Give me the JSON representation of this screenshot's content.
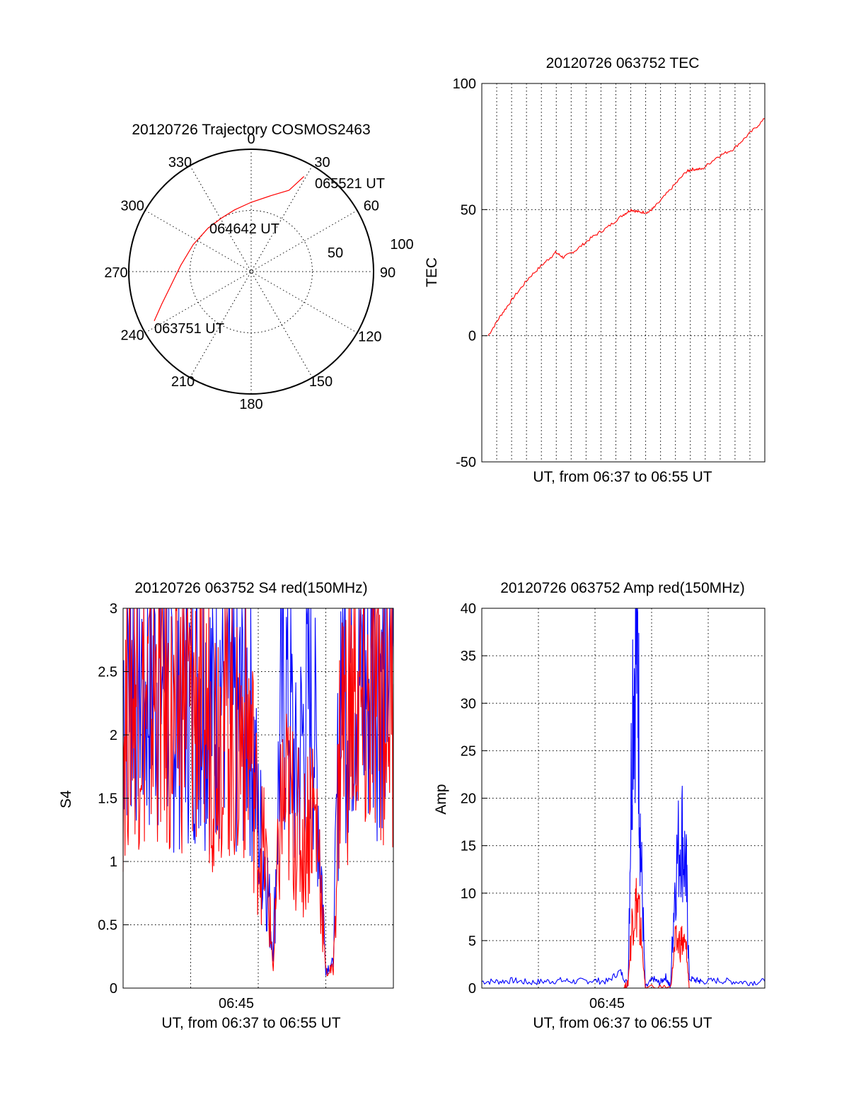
{
  "colors": {
    "red_series": "#ff0000",
    "blue_series": "#0000ff",
    "axes": "#000000"
  },
  "chart_data": [
    {
      "type": "polar",
      "title": "20120726 Trajectory COSMOS2463",
      "angle_ticks": [
        "0",
        "30",
        "60",
        "90",
        "120",
        "150",
        "180",
        "210",
        "240",
        "270",
        "300",
        "330"
      ],
      "radius_labels": [
        "50",
        "100"
      ],
      "annotations": [
        {
          "text": "063751 UT",
          "azimuth": 243,
          "elevation": 10
        },
        {
          "text": "064642 UT",
          "azimuth": 331,
          "elevation": 45
        },
        {
          "text": "065521 UT",
          "azimuth": 29,
          "elevation": 10
        }
      ],
      "series": [
        {
          "color": "#ff0000",
          "points": [
            [
              243,
              10
            ],
            [
              250,
              20
            ],
            [
              260,
              30
            ],
            [
              275,
              38
            ],
            [
              295,
              43
            ],
            [
              315,
              45
            ],
            [
              331,
              45
            ],
            [
              345,
              43
            ],
            [
              360,
              39
            ],
            [
              375,
              32
            ],
            [
              385,
              24
            ],
            [
              389,
              10
            ]
          ]
        }
      ]
    },
    {
      "type": "line",
      "title": "20120726 063752 TEC",
      "xlabel": "UT, from 06:37 to 06:55 UT",
      "ylabel": "TEC",
      "ylim": [
        -50,
        100
      ],
      "yticks": [
        "-50",
        "0",
        "50",
        "100"
      ],
      "xlim_minutes": [
        0,
        18
      ],
      "grid": true,
      "series": [
        {
          "color": "#ff0000",
          "x": [
            0.4,
            1.2,
            2.0,
            3.0,
            4.0,
            4.7,
            5.2,
            6.0,
            7.0,
            8.0,
            9.0,
            9.5,
            10.0,
            10.6,
            11.0,
            12.0,
            13.0,
            13.4,
            14.0,
            15.0,
            16.0,
            17.0,
            18.0
          ],
          "y": [
            0,
            8,
            15,
            23,
            29,
            33,
            31,
            34,
            39,
            43,
            48,
            50,
            49,
            49,
            51,
            58,
            65,
            66,
            66,
            71,
            74,
            80,
            86
          ]
        }
      ]
    },
    {
      "type": "line",
      "title": "20120726 063752 S4 red(150MHz)",
      "xlabel": "UT, from 06:37 to 06:55 UT",
      "ylabel": "S4",
      "ylim": [
        0,
        3
      ],
      "yticks": [
        "0",
        "0.5",
        "1",
        "1.5",
        "2",
        "2.5",
        "3"
      ],
      "xtick_labels": [
        "06:45"
      ],
      "xlim_minutes": [
        0,
        18
      ],
      "grid": true,
      "series": [
        {
          "color": "#0000ff",
          "x": [
            0.0,
            0.5,
            1.0,
            1.5,
            2.0,
            2.5,
            3.0,
            3.5,
            4.0,
            4.5,
            5.0,
            5.5,
            6.0,
            6.5,
            7.0,
            7.5,
            8.0,
            8.5,
            9.0,
            9.5,
            10.0,
            10.5,
            11.0,
            11.5,
            12.0,
            12.5,
            13.0,
            13.5,
            14.0,
            14.5,
            15.0,
            15.5,
            16.0,
            16.5,
            17.0,
            17.5,
            18.0
          ],
          "y": [
            2.4,
            2.7,
            2.6,
            2.3,
            2.5,
            2.6,
            2.4,
            2.2,
            2.6,
            2.3,
            2.5,
            2.4,
            2.2,
            2.5,
            2.4,
            2.0,
            2.3,
            2.2,
            1.3,
            1.0,
            0.25,
            2.2,
            2.4,
            1.6,
            2.0,
            2.5,
            1.5,
            0.15,
            0.2,
            2.6,
            2.4,
            2.7,
            2.3,
            2.5,
            2.6,
            2.8,
            2.7
          ]
        },
        {
          "color": "#ff0000",
          "x": [
            0.0,
            0.5,
            1.0,
            1.5,
            2.0,
            2.5,
            3.0,
            3.5,
            4.0,
            4.5,
            5.0,
            5.5,
            6.0,
            6.5,
            7.0,
            7.5,
            8.0,
            8.5,
            9.0,
            9.5,
            10.0,
            10.5,
            11.0,
            11.5,
            12.0,
            12.5,
            13.0,
            13.5,
            14.0,
            14.5,
            15.0,
            15.5,
            16.0,
            16.5,
            17.0,
            17.5,
            18.0
          ],
          "y": [
            2.0,
            2.5,
            2.4,
            2.2,
            2.3,
            2.5,
            2.1,
            2.0,
            2.4,
            2.2,
            2.3,
            2.2,
            2.0,
            2.3,
            2.2,
            1.8,
            2.1,
            2.0,
            1.2,
            1.0,
            0.15,
            1.4,
            1.5,
            1.3,
            1.1,
            1.5,
            1.2,
            0.12,
            0.15,
            2.2,
            2.1,
            2.3,
            2.0,
            2.2,
            2.3,
            2.4,
            2.4
          ]
        }
      ]
    },
    {
      "type": "line",
      "title": "20120726 063752 Amp red(150MHz)",
      "xlabel": "UT, from 06:37 to 06:55 UT",
      "ylabel": "Amp",
      "ylim": [
        0,
        40
      ],
      "yticks": [
        "0",
        "5",
        "10",
        "15",
        "20",
        "25",
        "30",
        "35",
        "40"
      ],
      "xtick_labels": [
        "06:45"
      ],
      "xlim_minutes": [
        0,
        18
      ],
      "grid": true,
      "series": [
        {
          "color": "#0000ff",
          "x": [
            0.0,
            1.0,
            2.0,
            3.0,
            4.0,
            5.0,
            6.0,
            7.0,
            8.0,
            8.8,
            9.3,
            9.6,
            9.9,
            10.1,
            10.4,
            10.9,
            11.3,
            11.7,
            12.0,
            12.3,
            12.7,
            13.0,
            13.2,
            13.7,
            14.0,
            15.0,
            16.0,
            17.0,
            18.0
          ],
          "y": [
            0.7,
            0.7,
            0.8,
            0.6,
            0.7,
            0.8,
            0.7,
            0.8,
            0.7,
            1.8,
            0.3,
            33,
            37,
            15,
            0,
            1.0,
            0.5,
            1.2,
            0,
            12,
            17,
            12,
            1.0,
            0.8,
            0.7,
            0.8,
            0.7,
            0.6,
            0.7
          ]
        },
        {
          "color": "#ff0000",
          "x": [
            9.0,
            9.3,
            9.6,
            9.9,
            10.1,
            10.4,
            12.0,
            12.3,
            12.7,
            13.0,
            13.2
          ],
          "y": [
            0,
            0.5,
            8,
            9,
            6,
            0,
            0,
            4.5,
            5,
            4,
            0
          ]
        }
      ]
    }
  ]
}
